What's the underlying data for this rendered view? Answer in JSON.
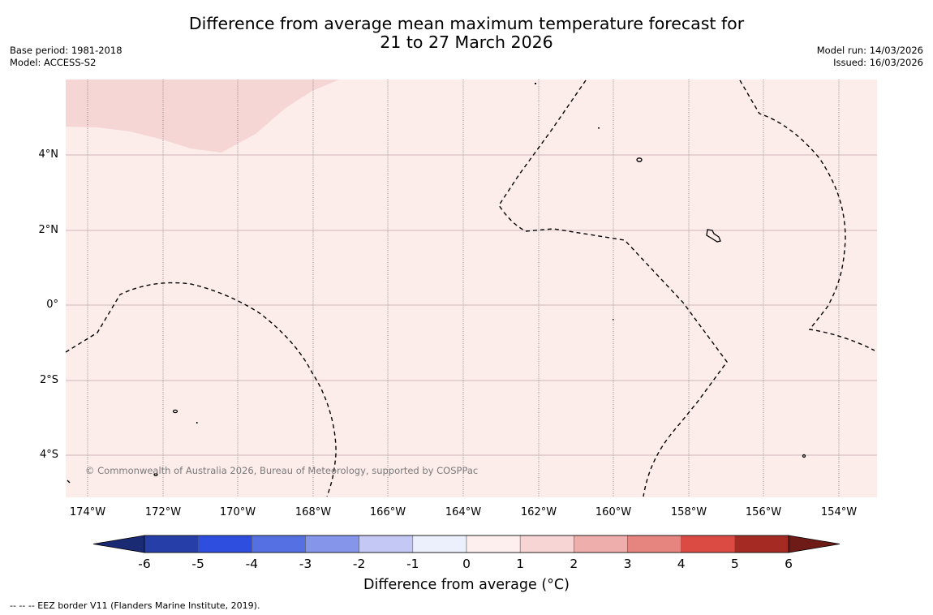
{
  "title": {
    "line1": "Difference from average mean maximum temperature forecast for",
    "line2": "21 to 27 March 2026"
  },
  "meta_left": {
    "base_period": "Base period: 1981-2018",
    "model": "Model: ACCESS-S2"
  },
  "meta_right": {
    "model_run": "Model run: 14/03/2026",
    "issued": "Issued: 16/03/2026"
  },
  "map": {
    "lat_labels": [
      "4°N",
      "2°N",
      "0°",
      "2°S",
      "4°S"
    ],
    "lon_labels": [
      "174°W",
      "172°W",
      "170°W",
      "168°W",
      "166°W",
      "164°W",
      "162°W",
      "160°W",
      "158°W",
      "156°W",
      "154°W"
    ],
    "copyright": "© Commonwealth of Australia 2026, Bureau of Meteorology, supported by COSPPac",
    "field": {
      "background_anomaly_bin": "0 to 1",
      "northwest_anomaly_bin": "1 to 2"
    }
  },
  "colorbar": {
    "ticks": [
      "-6",
      "-5",
      "-4",
      "-3",
      "-2",
      "-1",
      "0",
      "1",
      "2",
      "3",
      "4",
      "5",
      "6"
    ],
    "colors": [
      "#263ea8",
      "#2e4ee0",
      "#5570e3",
      "#8595ea",
      "#c3c8f4",
      "#eceffc",
      "#fcefed",
      "#f6d5d4",
      "#eeaeab",
      "#e6857f",
      "#dc4a44",
      "#a52a23"
    ],
    "under_color": "#1a2a73",
    "over_color": "#6e1a17",
    "label": "Difference from average (°C)"
  },
  "footer": {
    "eez_legend": "--  --  -- EEZ border V11 (Flanders Marine Institute, 2019)."
  }
}
